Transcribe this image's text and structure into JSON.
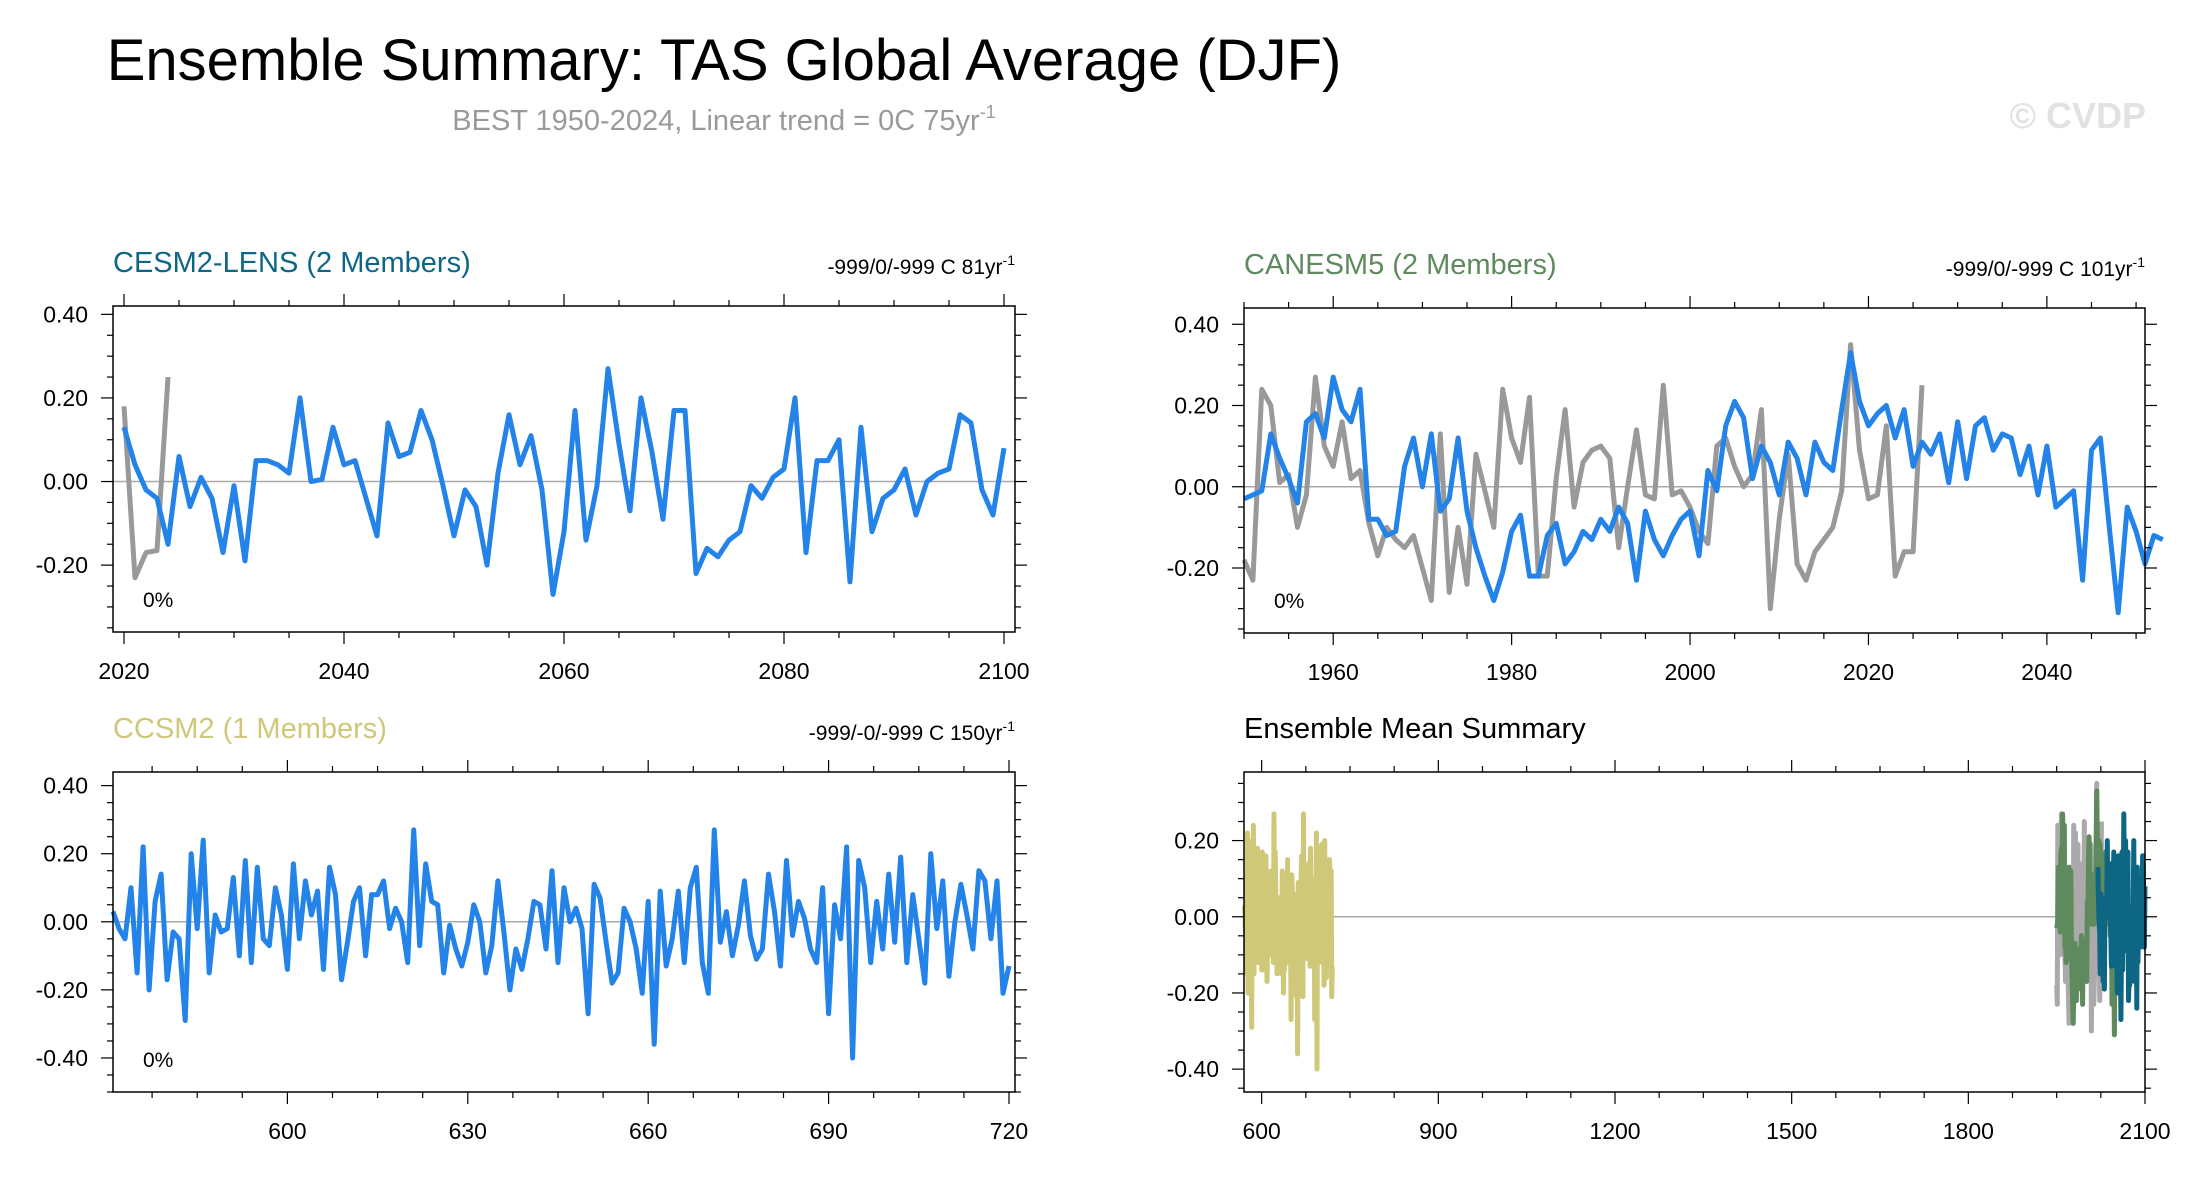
{
  "title": "Ensemble Summary: TAS Global Average (DJF)",
  "subtitle": "BEST 1950-2024, Linear trend = 0C 75yr",
  "subtitle_sup": "-1",
  "watermark": "© CVDP",
  "colors": {
    "obs": "#999999",
    "model": "#2383e8",
    "cesm2": "#0e6685",
    "canesm5": "#5e8a5e",
    "ccsm2": "#cfc878",
    "axis": "#000000",
    "zero_line": "#a9a9a9"
  },
  "chart_data": [
    {
      "id": "cesm2",
      "type": "line",
      "title": "CESM2-LENS (2 Members)",
      "title_color": "#0e6685",
      "right_text": "-999/0/-999 C 81yr",
      "right_sup": "-1",
      "annotation": "0%",
      "xlim": [
        2019,
        2101
      ],
      "ylim": [
        -0.36,
        0.42
      ],
      "xticks": [
        2020,
        2040,
        2060,
        2080,
        2100
      ],
      "yticks": [
        0.4,
        0.2,
        0.0,
        -0.2
      ],
      "ytick_labels": [
        "0.40",
        "0.20",
        "0.00",
        "-0.20"
      ],
      "series": [
        {
          "x0": 2020,
          "values": [
            0.18,
            -0.23,
            -0.17,
            -0.165,
            0.25
          ],
          "color": "#999999"
        },
        {
          "x0": 2020,
          "values": [
            0.13,
            0.04,
            -0.02,
            -0.04,
            -0.15,
            0.06,
            -0.06,
            0.01,
            -0.04,
            -0.17,
            -0.01,
            -0.19,
            0.05,
            0.05,
            0.04,
            0.02,
            0.2,
            0.0,
            0.005,
            0.13,
            0.04,
            0.05,
            -0.04,
            -0.13,
            0.14,
            0.06,
            0.07,
            0.17,
            0.1,
            -0.01,
            -0.13,
            -0.02,
            -0.06,
            -0.2,
            0.02,
            0.16,
            0.04,
            0.11,
            -0.02,
            -0.27,
            -0.12,
            0.17,
            -0.14,
            -0.01,
            0.27,
            0.09,
            -0.07,
            0.2,
            0.07,
            -0.09,
            0.17,
            0.17,
            -0.22,
            -0.16,
            -0.18,
            -0.14,
            -0.12,
            -0.01,
            -0.04,
            0.01,
            0.03,
            0.2,
            -0.17,
            0.05,
            0.05,
            0.1,
            -0.24,
            0.13,
            -0.12,
            -0.04,
            -0.02,
            0.03,
            -0.08,
            0.0,
            0.02,
            0.03,
            0.16,
            0.14,
            -0.02,
            -0.08,
            0.08
          ],
          "color": "#2383e8"
        }
      ]
    },
    {
      "id": "canesm5",
      "type": "line",
      "title": "CANESM5 (2 Members)",
      "title_color": "#5e8a5e",
      "right_text": "-999/0/-999 C 101yr",
      "right_sup": "-1",
      "annotation": "0%",
      "xlim": [
        1950,
        2051
      ],
      "ylim": [
        -0.36,
        0.44
      ],
      "xticks": [
        1960,
        1980,
        2000,
        2020,
        2040
      ],
      "yticks": [
        0.4,
        0.2,
        0.0,
        -0.2
      ],
      "ytick_labels": [
        "0.40",
        "0.20",
        "0.00",
        "-0.20"
      ],
      "series": [
        {
          "x0": 1950,
          "values": [
            -0.18,
            -0.23,
            0.24,
            0.2,
            0.01,
            0.03,
            -0.1,
            -0.02,
            0.27,
            0.1,
            0.05,
            0.16,
            0.02,
            0.04,
            -0.09,
            -0.17,
            -0.1,
            -0.13,
            -0.15,
            -0.12,
            -0.2,
            -0.28,
            0.13,
            -0.26,
            -0.1,
            -0.24,
            0.08,
            -0.01,
            -0.1,
            0.24,
            0.12,
            0.06,
            0.22,
            -0.22,
            -0.22,
            0.02,
            0.19,
            -0.05,
            0.06,
            0.09,
            0.1,
            0.07,
            -0.15,
            0.0,
            0.14,
            -0.02,
            -0.03,
            0.25,
            -0.02,
            -0.01,
            -0.05,
            -0.11,
            -0.14,
            0.1,
            0.12,
            0.05,
            0.0,
            0.03,
            0.19,
            -0.3,
            -0.08,
            0.08,
            -0.19,
            -0.23,
            -0.16,
            -0.13,
            -0.1,
            -0.01,
            0.35,
            0.09,
            -0.03,
            -0.02,
            0.15,
            -0.22,
            -0.16,
            -0.16,
            0.25
          ],
          "color": "#999999"
        },
        {
          "x0": 1950,
          "values": [
            -0.03,
            -0.02,
            -0.01,
            0.13,
            0.07,
            0.02,
            -0.04,
            0.16,
            0.18,
            0.12,
            0.27,
            0.19,
            0.16,
            0.24,
            -0.08,
            -0.08,
            -0.12,
            -0.11,
            0.05,
            0.12,
            0.0,
            0.13,
            -0.06,
            -0.03,
            0.12,
            -0.06,
            -0.15,
            -0.22,
            -0.28,
            -0.21,
            -0.11,
            -0.07,
            -0.22,
            -0.22,
            -0.12,
            -0.09,
            -0.19,
            -0.16,
            -0.11,
            -0.13,
            -0.08,
            -0.11,
            -0.05,
            -0.09,
            -0.23,
            -0.06,
            -0.13,
            -0.17,
            -0.12,
            -0.08,
            -0.06,
            -0.17,
            0.04,
            -0.01,
            0.15,
            0.21,
            0.17,
            0.02,
            0.1,
            0.06,
            -0.02,
            0.11,
            0.07,
            -0.02,
            0.11,
            0.06,
            0.04,
            0.19,
            0.33,
            0.21,
            0.15,
            0.18,
            0.2,
            0.12,
            0.19,
            0.05,
            0.11,
            0.08,
            0.13,
            0.01,
            0.16,
            0.02,
            0.15,
            0.17,
            0.09,
            0.13,
            0.12,
            0.03,
            0.1,
            -0.02,
            0.1,
            -0.05,
            -0.03,
            -0.01,
            -0.23,
            0.09,
            0.12,
            -0.1,
            -0.31,
            -0.05,
            -0.11,
            -0.19,
            -0.12,
            -0.13
          ],
          "color": "#2383e8"
        }
      ]
    },
    {
      "id": "ccsm2",
      "type": "line",
      "title": "CCSM2 (1 Members)",
      "title_color": "#cfc878",
      "right_text": "-999/-0/-999 C 150yr",
      "right_sup": "-1",
      "annotation": "0%",
      "xlim": [
        571,
        721
      ],
      "ylim": [
        -0.5,
        0.44
      ],
      "xticks": [
        600,
        630,
        660,
        690,
        720
      ],
      "yticks": [
        0.4,
        0.2,
        0.0,
        -0.2,
        -0.4
      ],
      "ytick_labels": [
        "0.40",
        "0.20",
        "0.00",
        "-0.20",
        "-0.40"
      ],
      "series": [
        {
          "x0": 571,
          "values": [
            0.03,
            -0.02,
            -0.05,
            0.1,
            -0.15,
            0.22,
            -0.2,
            0.06,
            0.14,
            -0.17,
            -0.03,
            -0.05,
            -0.29,
            0.2,
            -0.02,
            0.24,
            -0.15,
            0.02,
            -0.03,
            -0.02,
            0.13,
            -0.1,
            0.18,
            -0.12,
            0.16,
            -0.05,
            -0.07,
            0.1,
            0.02,
            -0.14,
            0.17,
            -0.05,
            0.12,
            0.02,
            0.09,
            -0.14,
            0.16,
            0.08,
            -0.17,
            -0.06,
            0.06,
            0.1,
            -0.1,
            0.08,
            0.08,
            0.12,
            -0.02,
            0.04,
            0.0,
            -0.12,
            0.27,
            -0.07,
            0.17,
            0.06,
            0.05,
            -0.15,
            -0.01,
            -0.08,
            -0.13,
            -0.06,
            0.05,
            0.0,
            -0.15,
            -0.07,
            0.12,
            -0.03,
            -0.2,
            -0.08,
            -0.14,
            -0.05,
            0.06,
            0.05,
            -0.08,
            0.15,
            -0.12,
            0.1,
            0.0,
            0.04,
            -0.02,
            -0.27,
            0.11,
            0.07,
            -0.06,
            -0.18,
            -0.15,
            0.04,
            0.0,
            -0.08,
            -0.21,
            0.06,
            -0.36,
            0.09,
            -0.13,
            -0.05,
            0.09,
            -0.12,
            0.1,
            0.16,
            -0.12,
            -0.21,
            0.27,
            -0.06,
            0.03,
            -0.1,
            -0.01,
            0.12,
            -0.04,
            -0.11,
            -0.08,
            0.14,
            0.03,
            -0.13,
            0.18,
            -0.04,
            0.06,
            0.01,
            -0.08,
            -0.12,
            0.1,
            -0.27,
            0.05,
            -0.05,
            0.22,
            -0.4,
            0.18,
            0.1,
            -0.12,
            0.06,
            -0.08,
            0.14,
            -0.06,
            0.19,
            -0.12,
            0.08,
            -0.05,
            -0.18,
            0.2,
            -0.02,
            0.12,
            -0.16,
            0.0,
            0.11,
            0.02,
            -0.08,
            0.15,
            0.12,
            -0.05,
            0.12,
            -0.21,
            -0.13
          ],
          "color": "#2383e8"
        }
      ]
    },
    {
      "id": "ensemble-mean",
      "type": "line",
      "title": "Ensemble Mean Summary",
      "title_color": "#000000",
      "xlim": [
        570,
        2100
      ],
      "ylim": [
        -0.46,
        0.38
      ],
      "xticks": [
        600,
        900,
        1200,
        1500,
        1800,
        2100
      ],
      "yticks": [
        0.2,
        0.0,
        -0.2,
        -0.4
      ],
      "ytick_labels": [
        "0.20",
        "0.00",
        "-0.20",
        "-0.40"
      ],
      "series_ref": [
        "ccsm2",
        "canesm5-obs",
        "canesm5",
        "cesm2"
      ]
    }
  ]
}
